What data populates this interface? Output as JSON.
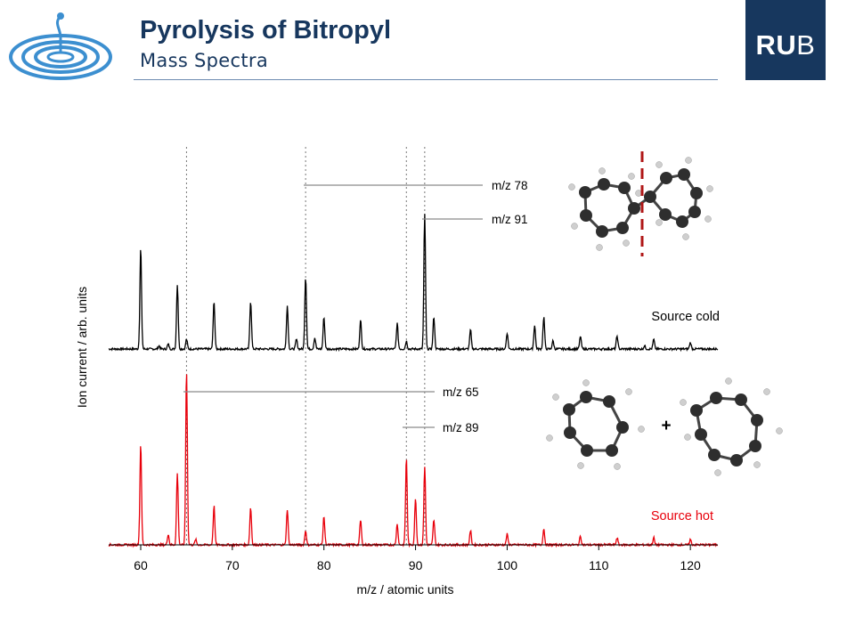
{
  "slide": {
    "title": "Pyrolysis of Bitropyl",
    "subtitle": "Mass Spectra",
    "logo_text_bold": "RU",
    "logo_text_light": "B",
    "accent_color": "#17375e"
  },
  "chart_data": {
    "type": "line",
    "xlabel": "m/z / atomic units",
    "ylabel": "Ion current / arb. units",
    "xlim": [
      56.5,
      123
    ],
    "xticks": [
      60,
      70,
      80,
      90,
      100,
      110,
      120
    ],
    "grid": false,
    "reference_lines_x": [
      65,
      78,
      89,
      91
    ],
    "series": [
      {
        "name": "Source cold",
        "color": "#000000",
        "peaks": [
          {
            "x": 60,
            "y": 0.63
          },
          {
            "x": 62,
            "y": 0.02
          },
          {
            "x": 63,
            "y": 0.03
          },
          {
            "x": 64,
            "y": 0.4
          },
          {
            "x": 65,
            "y": 0.06
          },
          {
            "x": 68,
            "y": 0.3
          },
          {
            "x": 72,
            "y": 0.3
          },
          {
            "x": 76,
            "y": 0.27
          },
          {
            "x": 77,
            "y": 0.06
          },
          {
            "x": 78,
            "y": 0.45
          },
          {
            "x": 79,
            "y": 0.07
          },
          {
            "x": 80,
            "y": 0.2
          },
          {
            "x": 84,
            "y": 0.18
          },
          {
            "x": 88,
            "y": 0.16
          },
          {
            "x": 89,
            "y": 0.05
          },
          {
            "x": 91,
            "y": 0.84
          },
          {
            "x": 92,
            "y": 0.2
          },
          {
            "x": 96,
            "y": 0.12
          },
          {
            "x": 100,
            "y": 0.1
          },
          {
            "x": 103,
            "y": 0.15
          },
          {
            "x": 104,
            "y": 0.2
          },
          {
            "x": 105,
            "y": 0.05
          },
          {
            "x": 108,
            "y": 0.08
          },
          {
            "x": 112,
            "y": 0.08
          },
          {
            "x": 115,
            "y": 0.02
          },
          {
            "x": 116,
            "y": 0.06
          },
          {
            "x": 120,
            "y": 0.04
          }
        ]
      },
      {
        "name": "Source hot",
        "color": "#e8000b",
        "peaks": [
          {
            "x": 60,
            "y": 0.57
          },
          {
            "x": 63,
            "y": 0.06
          },
          {
            "x": 64,
            "y": 0.4
          },
          {
            "x": 65,
            "y": 0.98
          },
          {
            "x": 66,
            "y": 0.03
          },
          {
            "x": 68,
            "y": 0.22
          },
          {
            "x": 72,
            "y": 0.21
          },
          {
            "x": 76,
            "y": 0.2
          },
          {
            "x": 78,
            "y": 0.08
          },
          {
            "x": 80,
            "y": 0.16
          },
          {
            "x": 84,
            "y": 0.14
          },
          {
            "x": 88,
            "y": 0.12
          },
          {
            "x": 89,
            "y": 0.49
          },
          {
            "x": 90,
            "y": 0.26
          },
          {
            "x": 91,
            "y": 0.44
          },
          {
            "x": 92,
            "y": 0.14
          },
          {
            "x": 96,
            "y": 0.08
          },
          {
            "x": 100,
            "y": 0.06
          },
          {
            "x": 104,
            "y": 0.09
          },
          {
            "x": 108,
            "y": 0.05
          },
          {
            "x": 112,
            "y": 0.04
          },
          {
            "x": 116,
            "y": 0.04
          },
          {
            "x": 120,
            "y": 0.03
          }
        ]
      }
    ],
    "annotations": [
      {
        "text": "m/z 78",
        "x": 78,
        "series": "Source cold"
      },
      {
        "text": "m/z 91",
        "x": 91,
        "series": "Source cold"
      },
      {
        "text": "m/z 65",
        "x": 65,
        "series": "Source hot"
      },
      {
        "text": "m/z 89",
        "x": 89,
        "series": "Source hot"
      }
    ],
    "molecule_plus_sign": "+"
  }
}
